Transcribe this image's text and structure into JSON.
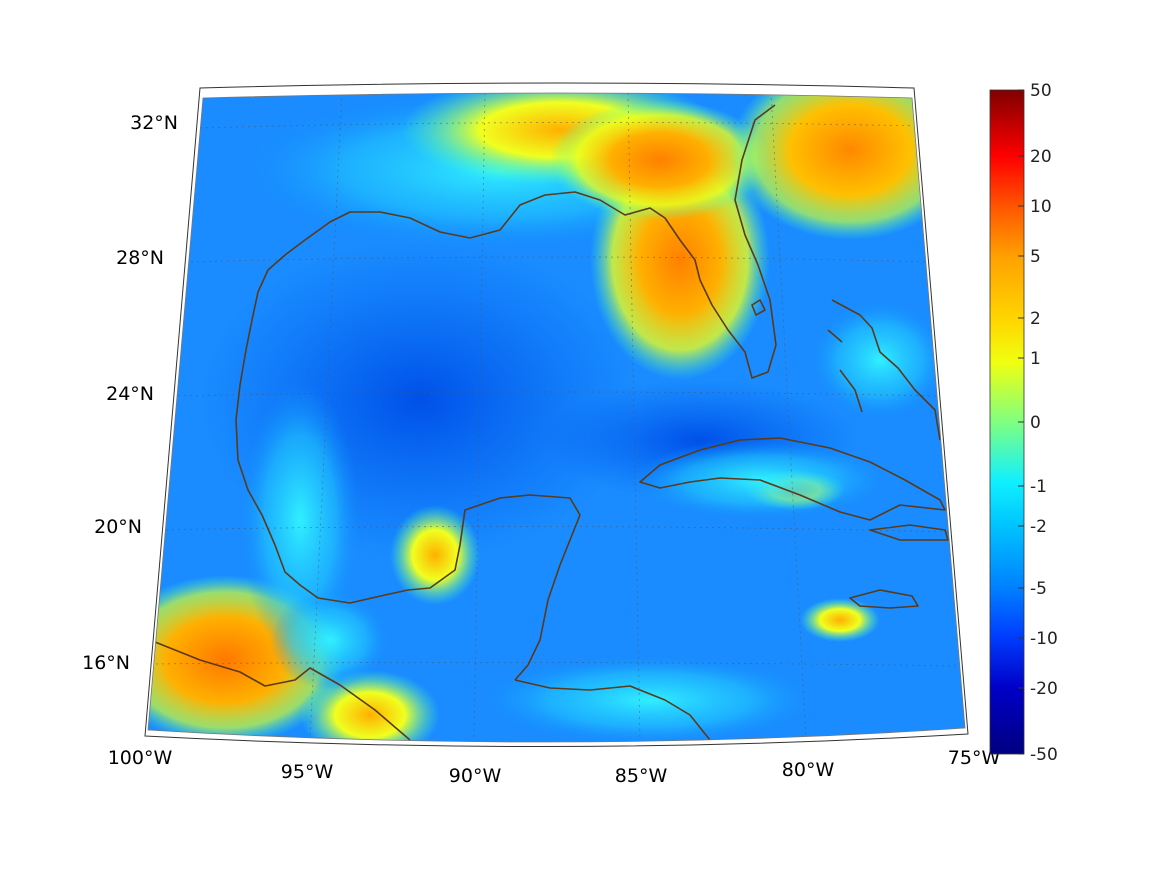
{
  "map": {
    "projection": "conic",
    "region": "Gulf of Mexico and Caribbean",
    "lon_range": [
      -100,
      -75
    ],
    "lat_range": [
      14,
      33
    ],
    "lon_labels": [
      "100°W",
      "95°W",
      "90°W",
      "85°W",
      "80°W",
      "75°W"
    ],
    "lat_labels": [
      "32°N",
      "28°N",
      "24°N",
      "20°N",
      "16°N"
    ],
    "grid": true,
    "coastline_color": "#5a3a1a"
  },
  "colorbar": {
    "colormap": "jet",
    "placement": "right",
    "labels": [
      "50",
      "20",
      "10",
      "5",
      "2",
      "1",
      "0",
      "-1",
      "-2",
      "-5",
      "-10",
      "-20",
      "-50"
    ],
    "colors": [
      "#800000",
      "#ff0000",
      "#ff5a00",
      "#ffa000",
      "#ffd800",
      "#f0ff10",
      "#80ff80",
      "#10f0ff",
      "#00c8ff",
      "#0080ff",
      "#0040ff",
      "#0000c8",
      "#000080"
    ]
  }
}
